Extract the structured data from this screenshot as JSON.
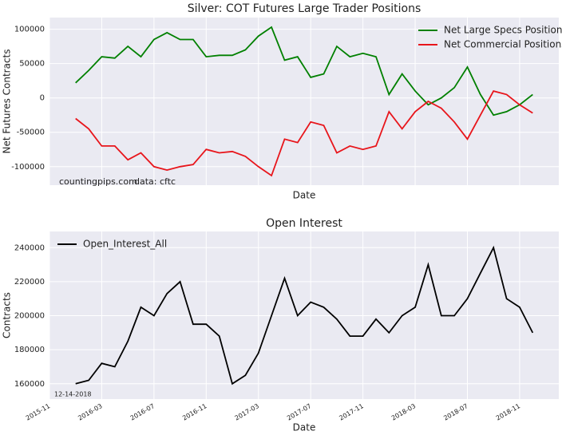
{
  "chart_data": [
    {
      "type": "line",
      "title": "Silver: COT Futures Large Trader Positions",
      "xlabel": "Date",
      "ylabel": "Net Futures Contracts",
      "x": [
        "2016-01",
        "2016-02",
        "2016-03",
        "2016-04",
        "2016-05",
        "2016-06",
        "2016-07",
        "2016-08",
        "2016-09",
        "2016-10",
        "2016-11",
        "2016-12",
        "2017-01",
        "2017-02",
        "2017-03",
        "2017-04",
        "2017-05",
        "2017-06",
        "2017-07",
        "2017-08",
        "2017-09",
        "2017-10",
        "2017-11",
        "2017-12",
        "2018-01",
        "2018-02",
        "2018-03",
        "2018-04",
        "2018-05",
        "2018-06",
        "2018-07",
        "2018-08",
        "2018-09",
        "2018-10",
        "2018-11",
        "2018-12"
      ],
      "series": [
        {
          "name": "Net Large Specs Positions",
          "color": "#008000",
          "values": [
            22000,
            40000,
            60000,
            58000,
            75000,
            60000,
            85000,
            95000,
            85000,
            85000,
            60000,
            62000,
            62000,
            70000,
            90000,
            103000,
            55000,
            60000,
            30000,
            35000,
            75000,
            60000,
            65000,
            60000,
            5000,
            35000,
            10000,
            -10000,
            0,
            15000,
            45000,
            5000,
            -25000,
            -20000,
            -10000,
            5000
          ]
        },
        {
          "name": "Net Commercial Positions",
          "color": "#e8151b",
          "values": [
            -30000,
            -45000,
            -70000,
            -70000,
            -90000,
            -80000,
            -100000,
            -105000,
            -100000,
            -97000,
            -75000,
            -80000,
            -78000,
            -85000,
            -100000,
            -113000,
            -60000,
            -65000,
            -35000,
            -40000,
            -80000,
            -70000,
            -75000,
            -70000,
            -20000,
            -45000,
            -20000,
            -5000,
            -15000,
            -35000,
            -60000,
            -25000,
            10000,
            5000,
            -10000,
            -22000
          ]
        }
      ],
      "xlim": [
        "2015-11",
        "2019-02"
      ],
      "xticks": [
        "2015-11",
        "2016-03",
        "2016-07",
        "2016-11",
        "2017-03",
        "2017-07",
        "2017-11",
        "2018-03",
        "2018-07",
        "2018-11"
      ],
      "show_xtick_labels": false,
      "ylim": [
        -127000,
        117000
      ],
      "yticks": [
        -100000,
        -50000,
        0,
        50000,
        100000
      ],
      "grid": true,
      "legend": "upper right",
      "annotations": [
        "countingpips.com",
        "data: cftc"
      ]
    },
    {
      "type": "line",
      "title": "Open Interest",
      "xlabel": "Date",
      "ylabel": "Contracts",
      "x": [
        "2016-01",
        "2016-02",
        "2016-03",
        "2016-04",
        "2016-05",
        "2016-06",
        "2016-07",
        "2016-08",
        "2016-09",
        "2016-10",
        "2016-11",
        "2016-12",
        "2017-01",
        "2017-02",
        "2017-03",
        "2017-04",
        "2017-05",
        "2017-06",
        "2017-07",
        "2017-08",
        "2017-09",
        "2017-10",
        "2017-11",
        "2017-12",
        "2018-01",
        "2018-02",
        "2018-03",
        "2018-04",
        "2018-05",
        "2018-06",
        "2018-07",
        "2018-08",
        "2018-09",
        "2018-10",
        "2018-11",
        "2018-12"
      ],
      "series": [
        {
          "name": "Open_Interest_All",
          "color": "#000000",
          "values": [
            160000,
            162000,
            172000,
            170000,
            185000,
            205000,
            200000,
            213000,
            220000,
            195000,
            195000,
            188000,
            160000,
            165000,
            178000,
            200000,
            222000,
            200000,
            208000,
            205000,
            198000,
            188000,
            188000,
            198000,
            190000,
            200000,
            205000,
            230000,
            200000,
            200000,
            210000,
            225000,
            240000,
            210000,
            205000,
            190000
          ]
        }
      ],
      "xlim": [
        "2015-11",
        "2019-02"
      ],
      "xticks": [
        "2015-11",
        "2016-03",
        "2016-07",
        "2016-11",
        "2017-03",
        "2017-07",
        "2017-11",
        "2018-03",
        "2018-07",
        "2018-11"
      ],
      "show_xtick_labels": true,
      "ylim": [
        151000,
        249500
      ],
      "yticks": [
        160000,
        180000,
        200000,
        220000,
        240000
      ],
      "grid": true,
      "legend": "upper left",
      "annotations": [
        "12-14-2018"
      ]
    }
  ]
}
